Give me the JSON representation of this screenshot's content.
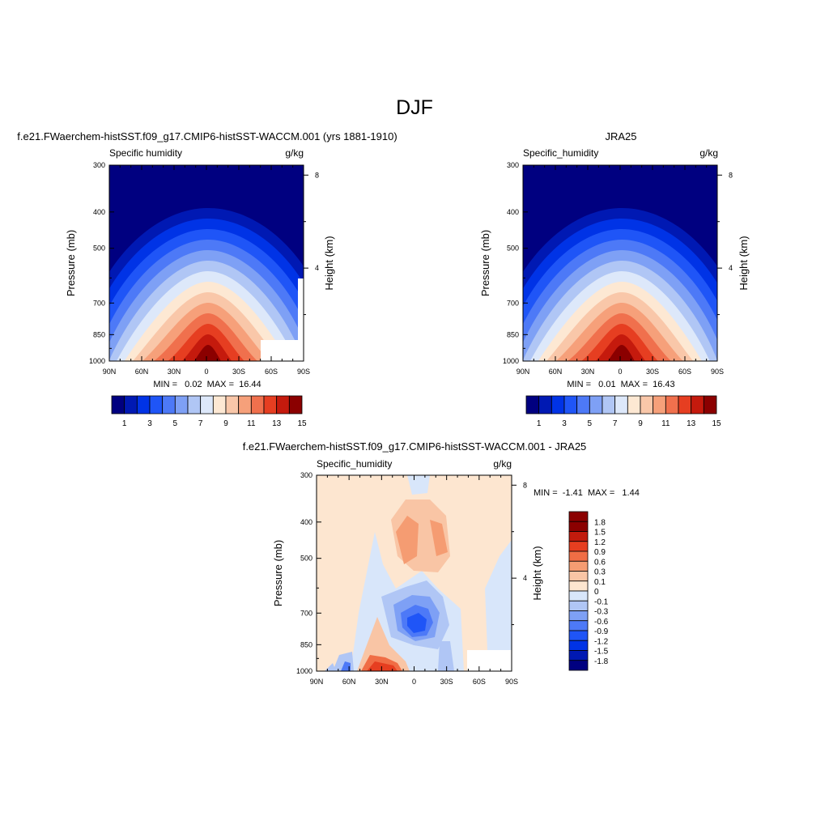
{
  "figure_title": "DJF",
  "colors": {
    "levels15": [
      "#000080",
      "#0019b3",
      "#0033e6",
      "#1f55f7",
      "#4d79f7",
      "#7ea0f5",
      "#b0c6f5",
      "#dde8fa",
      "#fde8d3",
      "#f9c7a9",
      "#f6a07a",
      "#f0704d",
      "#e63e21",
      "#c51a0d",
      "#8b0000"
    ],
    "diff": [
      "#000080",
      "#0019b3",
      "#0033e6",
      "#1f55f7",
      "#4d79f7",
      "#7ea0f5",
      "#b0c6f5",
      "#d8e6fa",
      "#fde6d0",
      "#f9c5a5",
      "#f59c72",
      "#f06d45",
      "#e63e20",
      "#c21b0d",
      "#8b0000"
    ]
  },
  "chart_data": [
    {
      "type": "heatmap",
      "title": "f.e21.FWaerchem-histSST.f09_g17.CMIP6-histSST-WACCM.001 (yrs 1881-1910)",
      "left_label": "Specific humidity",
      "right_label": "g/kg",
      "ylabel": "Pressure (mb)",
      "y2label": "Height (km)",
      "xticks": [
        "90N",
        "60N",
        "30N",
        "0",
        "30S",
        "60S",
        "90S"
      ],
      "yticks": [
        "300",
        "400",
        "500",
        "700",
        "850",
        "1000"
      ],
      "y2ticks": [
        "8",
        "4"
      ],
      "stats": "MIN =   0.02  MAX =  16.44",
      "min": 0.02,
      "max": 16.44,
      "colorbar_labels": [
        "1",
        "3",
        "5",
        "7",
        "9",
        "11",
        "13",
        "15"
      ],
      "xlim": [
        90,
        -90
      ],
      "ylim": [
        1000,
        300
      ]
    },
    {
      "type": "heatmap",
      "title": "JRA25",
      "left_label": "Specific_humidity",
      "right_label": "g/kg",
      "ylabel": "Pressure (mb)",
      "y2label": "Height (km)",
      "xticks": [
        "90N",
        "60N",
        "30N",
        "0",
        "30S",
        "60S",
        "90S"
      ],
      "yticks": [
        "300",
        "400",
        "500",
        "700",
        "850",
        "1000"
      ],
      "y2ticks": [
        "8",
        "4"
      ],
      "stats": "MIN =   0.01  MAX =  16.43",
      "min": 0.01,
      "max": 16.43,
      "colorbar_labels": [
        "1",
        "3",
        "5",
        "7",
        "9",
        "11",
        "13",
        "15"
      ],
      "xlim": [
        90,
        -90
      ],
      "ylim": [
        1000,
        300
      ]
    },
    {
      "type": "heatmap",
      "title": "f.e21.FWaerchem-histSST.f09_g17.CMIP6-histSST-WACCM.001 - JRA25",
      "left_label": "Specific_humidity",
      "right_label": "g/kg",
      "ylabel": "Pressure (mb)",
      "y2label": "Height (km)",
      "xticks": [
        "90N",
        "60N",
        "30N",
        "0",
        "30S",
        "60S",
        "90S"
      ],
      "yticks": [
        "300",
        "400",
        "500",
        "700",
        "850",
        "1000"
      ],
      "y2ticks": [
        "8",
        "4"
      ],
      "stats": "MIN =  -1.41  MAX =   1.44",
      "min": -1.41,
      "max": 1.44,
      "colorbar_labels": [
        "1.8",
        "1.5",
        "1.2",
        "0.9",
        "0.6",
        "0.3",
        "0.1",
        "0",
        "-0.1",
        "-0.3",
        "-0.6",
        "-0.9",
        "-1.2",
        "-1.5",
        "-1.8"
      ],
      "xlim": [
        90,
        -90
      ],
      "ylim": [
        1000,
        300
      ]
    }
  ]
}
